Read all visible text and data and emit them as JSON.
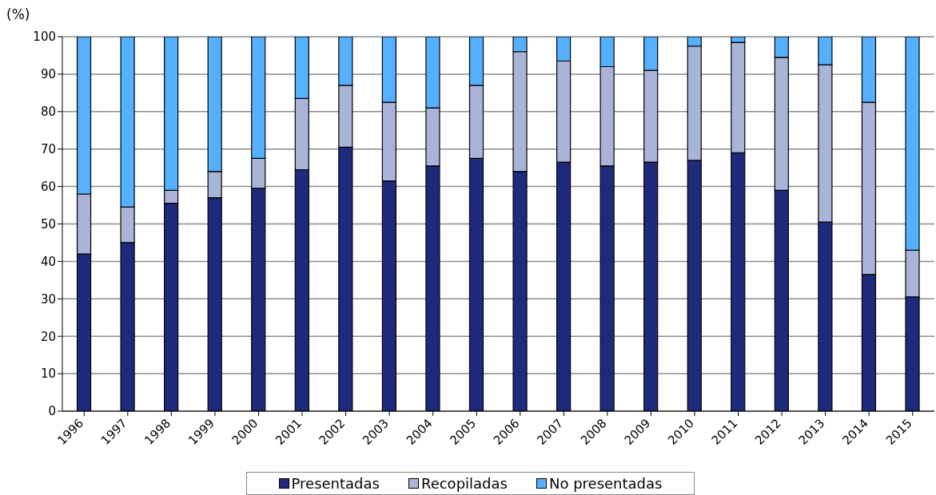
{
  "chart_data": {
    "type": "bar",
    "ylabel": "(%)",
    "stacked": true,
    "categories": [
      "1996",
      "1997",
      "1998",
      "1999",
      "2000",
      "2001",
      "2002",
      "2003",
      "2004",
      "2005",
      "2006",
      "2007",
      "2008",
      "2009",
      "2010",
      "2011",
      "2012",
      "2013",
      "2014",
      "2015"
    ],
    "series": [
      {
        "name": "Presentadas",
        "color": "#1f2a7c",
        "values": [
          42,
          45,
          55.5,
          57,
          59.5,
          64.5,
          70.5,
          61.5,
          65.5,
          67.5,
          64,
          66.5,
          65.5,
          66.5,
          67,
          69,
          59,
          50.5,
          36.5,
          30.5
        ]
      },
      {
        "name": "Recopiladas",
        "color": "#aab3d8",
        "values": [
          16,
          9.5,
          3.5,
          7,
          8,
          19,
          16.5,
          21,
          15.5,
          19.5,
          32,
          27,
          26.5,
          24.5,
          30.5,
          29.5,
          35.5,
          42,
          46,
          12.5
        ]
      },
      {
        "name": "No presentadas",
        "color": "#55b0ff",
        "values": [
          42,
          45.5,
          41,
          36,
          32.5,
          16.5,
          13,
          17.5,
          19,
          13,
          4,
          6.5,
          8,
          9,
          2.5,
          1.5,
          5.5,
          7.5,
          17.5,
          57
        ]
      }
    ],
    "ylim": [
      0,
      100
    ],
    "yticks": [
      0,
      10,
      20,
      30,
      40,
      50,
      60,
      70,
      80,
      90,
      100
    ],
    "grid": "y",
    "legend": "bottom"
  }
}
